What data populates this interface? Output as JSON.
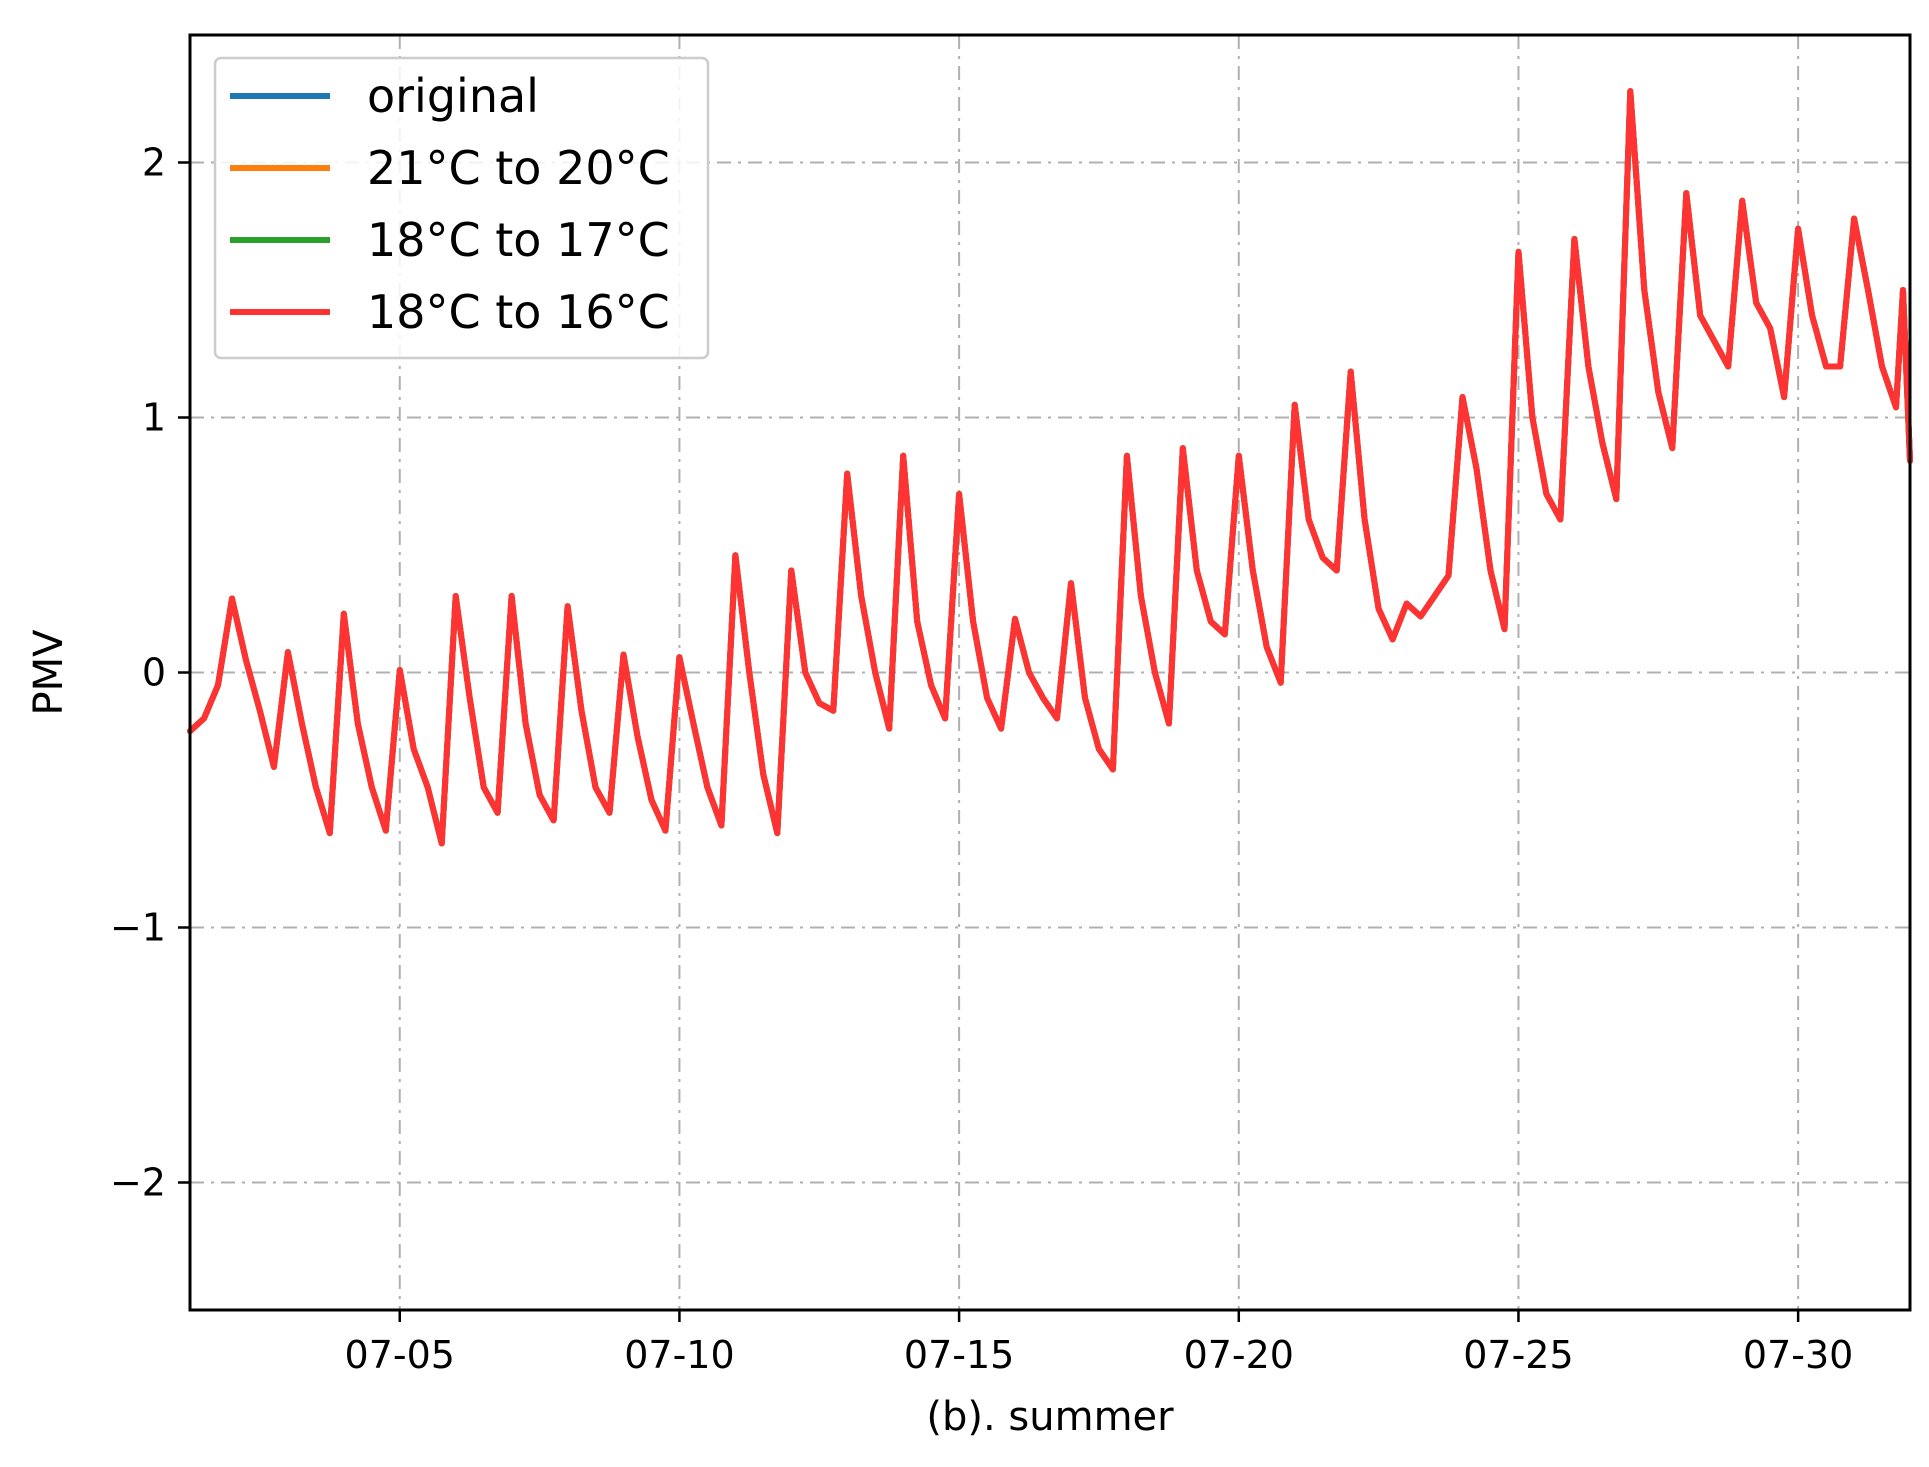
{
  "chart_data": {
    "type": "line",
    "title": "",
    "xlabel": "(b). summer",
    "ylabel": "PMV",
    "x_unit": "date (MM-DD, July)",
    "xlim": [
      "07-01 06:00",
      "08-01"
    ],
    "ylim": [
      -2.5,
      2.5
    ],
    "x_ticks": [
      "07-05",
      "07-10",
      "07-15",
      "07-20",
      "07-25",
      "07-30"
    ],
    "y_ticks": [
      {
        "value": -2,
        "label": "−2"
      },
      {
        "value": -1,
        "label": "−1"
      },
      {
        "value": 0,
        "label": "0"
      },
      {
        "value": 1,
        "label": "1"
      },
      {
        "value": 2,
        "label": "2"
      }
    ],
    "grid": true,
    "legend_position": "top-left",
    "series": [
      {
        "name": "original",
        "color": "#1f77b4",
        "note": "identical to other series (overdrawn)"
      },
      {
        "name": "21°C to 20°C",
        "color": "#ff7f0e",
        "note": "identical to other series (overdrawn)"
      },
      {
        "name": "18°C to 17°C",
        "color": "#2ca02c",
        "note": "identical to other series (overdrawn)"
      },
      {
        "name": "18°C to 16°C",
        "color": "#ff3333",
        "note": "visible top series"
      }
    ],
    "points_date_value": [
      [
        "07-01 06:00",
        -0.23
      ],
      [
        "07-01 12:00",
        -0.18
      ],
      [
        "07-01 18:00",
        -0.05
      ],
      [
        "07-02 00:00",
        0.29
      ],
      [
        "07-02 06:00",
        0.05
      ],
      [
        "07-02 12:00",
        -0.15
      ],
      [
        "07-02 18:00",
        -0.37
      ],
      [
        "07-03 00:00",
        0.08
      ],
      [
        "07-03 06:00",
        -0.2
      ],
      [
        "07-03 12:00",
        -0.45
      ],
      [
        "07-03 18:00",
        -0.63
      ],
      [
        "07-04 00:00",
        0.23
      ],
      [
        "07-04 06:00",
        -0.2
      ],
      [
        "07-04 12:00",
        -0.45
      ],
      [
        "07-04 18:00",
        -0.62
      ],
      [
        "07-05 00:00",
        0.01
      ],
      [
        "07-05 06:00",
        -0.3
      ],
      [
        "07-05 12:00",
        -0.45
      ],
      [
        "07-05 18:00",
        -0.67
      ],
      [
        "07-06 00:00",
        0.3
      ],
      [
        "07-06 06:00",
        -0.1
      ],
      [
        "07-06 12:00",
        -0.45
      ],
      [
        "07-06 18:00",
        -0.55
      ],
      [
        "07-07 00:00",
        0.3
      ],
      [
        "07-07 06:00",
        -0.2
      ],
      [
        "07-07 12:00",
        -0.48
      ],
      [
        "07-07 18:00",
        -0.58
      ],
      [
        "07-08 00:00",
        0.26
      ],
      [
        "07-08 06:00",
        -0.15
      ],
      [
        "07-08 12:00",
        -0.45
      ],
      [
        "07-08 18:00",
        -0.55
      ],
      [
        "07-09 00:00",
        0.07
      ],
      [
        "07-09 06:00",
        -0.25
      ],
      [
        "07-09 12:00",
        -0.5
      ],
      [
        "07-09 18:00",
        -0.62
      ],
      [
        "07-10 00:00",
        0.06
      ],
      [
        "07-10 06:00",
        -0.2
      ],
      [
        "07-10 12:00",
        -0.45
      ],
      [
        "07-10 18:00",
        -0.6
      ],
      [
        "07-11 00:00",
        0.46
      ],
      [
        "07-11 06:00",
        0.0
      ],
      [
        "07-11 12:00",
        -0.4
      ],
      [
        "07-11 18:00",
        -0.63
      ],
      [
        "07-12 00:00",
        0.4
      ],
      [
        "07-12 06:00",
        0.0
      ],
      [
        "07-12 12:00",
        -0.12
      ],
      [
        "07-12 18:00",
        -0.15
      ],
      [
        "07-13 00:00",
        0.78
      ],
      [
        "07-13 06:00",
        0.3
      ],
      [
        "07-13 12:00",
        0.0
      ],
      [
        "07-13 18:00",
        -0.22
      ],
      [
        "07-14 00:00",
        0.85
      ],
      [
        "07-14 06:00",
        0.2
      ],
      [
        "07-14 12:00",
        -0.05
      ],
      [
        "07-14 18:00",
        -0.18
      ],
      [
        "07-15 00:00",
        0.7
      ],
      [
        "07-15 06:00",
        0.2
      ],
      [
        "07-15 12:00",
        -0.1
      ],
      [
        "07-15 18:00",
        -0.22
      ],
      [
        "07-16 00:00",
        0.21
      ],
      [
        "07-16 06:00",
        0.0
      ],
      [
        "07-16 12:00",
        -0.1
      ],
      [
        "07-16 18:00",
        -0.18
      ],
      [
        "07-17 00:00",
        0.35
      ],
      [
        "07-17 06:00",
        -0.1
      ],
      [
        "07-17 12:00",
        -0.3
      ],
      [
        "07-17 18:00",
        -0.38
      ],
      [
        "07-18 00:00",
        0.85
      ],
      [
        "07-18 06:00",
        0.3
      ],
      [
        "07-18 12:00",
        0.0
      ],
      [
        "07-18 18:00",
        -0.2
      ],
      [
        "07-19 00:00",
        0.88
      ],
      [
        "07-19 06:00",
        0.4
      ],
      [
        "07-19 12:00",
        0.2
      ],
      [
        "07-19 18:00",
        0.15
      ],
      [
        "07-20 00:00",
        0.85
      ],
      [
        "07-20 06:00",
        0.4
      ],
      [
        "07-20 12:00",
        0.1
      ],
      [
        "07-20 18:00",
        -0.04
      ],
      [
        "07-21 00:00",
        1.05
      ],
      [
        "07-21 06:00",
        0.6
      ],
      [
        "07-21 12:00",
        0.45
      ],
      [
        "07-21 18:00",
        0.4
      ],
      [
        "07-22 00:00",
        1.18
      ],
      [
        "07-22 06:00",
        0.6
      ],
      [
        "07-22 12:00",
        0.25
      ],
      [
        "07-22 18:00",
        0.13
      ],
      [
        "07-23 00:00",
        0.27
      ],
      [
        "07-23 06:00",
        0.22
      ],
      [
        "07-23 12:00",
        0.3
      ],
      [
        "07-23 18:00",
        0.38
      ],
      [
        "07-24 00:00",
        1.08
      ],
      [
        "07-24 06:00",
        0.8
      ],
      [
        "07-24 12:00",
        0.4
      ],
      [
        "07-24 18:00",
        0.17
      ],
      [
        "07-25 00:00",
        1.65
      ],
      [
        "07-25 06:00",
        1.0
      ],
      [
        "07-25 12:00",
        0.7
      ],
      [
        "07-25 18:00",
        0.6
      ],
      [
        "07-26 00:00",
        1.7
      ],
      [
        "07-26 06:00",
        1.2
      ],
      [
        "07-26 12:00",
        0.9
      ],
      [
        "07-26 18:00",
        0.68
      ],
      [
        "07-27 00:00",
        2.28
      ],
      [
        "07-27 06:00",
        1.5
      ],
      [
        "07-27 12:00",
        1.1
      ],
      [
        "07-27 18:00",
        0.88
      ],
      [
        "07-28 00:00",
        1.88
      ],
      [
        "07-28 06:00",
        1.4
      ],
      [
        "07-28 12:00",
        1.3
      ],
      [
        "07-28 18:00",
        1.2
      ],
      [
        "07-29 00:00",
        1.85
      ],
      [
        "07-29 06:00",
        1.45
      ],
      [
        "07-29 12:00",
        1.35
      ],
      [
        "07-29 18:00",
        1.08
      ],
      [
        "07-30 00:00",
        1.74
      ],
      [
        "07-30 06:00",
        1.4
      ],
      [
        "07-30 12:00",
        1.2
      ],
      [
        "07-30 18:00",
        1.2
      ],
      [
        "07-31 00:00",
        1.78
      ],
      [
        "07-31 06:00",
        1.5
      ],
      [
        "07-31 12:00",
        1.2
      ],
      [
        "07-31 18:00",
        1.04
      ],
      [
        "07-31 21:00",
        1.5
      ],
      [
        "08-01 00:00",
        0.83
      ]
    ]
  }
}
